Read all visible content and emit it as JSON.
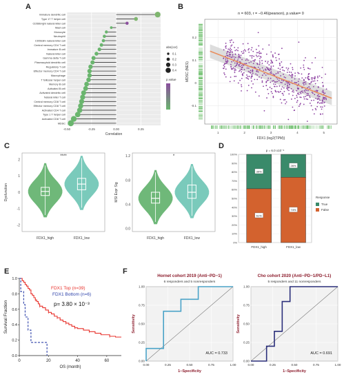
{
  "panel_letters": [
    "A",
    "B",
    "C",
    "D",
    "E",
    "F"
  ],
  "chart_data": [
    {
      "id": "A",
      "type": "lollipop",
      "categories": [
        "Immature dendritic cell",
        "Type 17 T helper cell",
        "CD56bright natural killer cell",
        "Mast cell",
        "Monocyte",
        "Neutrophil",
        "CD56dim natural killer cell",
        "Central memory CD4 T cell",
        "Immature B cell",
        "Natural killer cell",
        "Gamma delta T cell",
        "Plasmacytoid dendritic cell",
        "Regulatory T cell",
        "Effector memory CD4 T cell",
        "Macrophage",
        "T follicular helper cell",
        "Memory B cell",
        "Activated B cell",
        "Activated dendritic cell",
        "Natural killer T cell",
        "Central memory CD8 T cell",
        "Effector memory CD8 T cell",
        "Activated CD4 T cell",
        "Type 1 T helper cell",
        "Activated CD8 T cell",
        "MDSC"
      ],
      "values": [
        0.42,
        0.2,
        0.11,
        -0.05,
        -0.1,
        -0.12,
        -0.13,
        -0.15,
        -0.17,
        -0.2,
        -0.23,
        -0.24,
        -0.26,
        -0.27,
        -0.27,
        -0.28,
        -0.3,
        -0.31,
        -0.33,
        -0.34,
        -0.35,
        -0.36,
        -0.37,
        -0.39,
        -0.43,
        -0.46
      ],
      "pvalue": [
        0.02,
        0.01,
        0.1,
        0,
        0,
        0,
        0,
        0,
        0,
        0,
        0,
        0,
        0,
        0,
        0,
        0,
        0,
        0,
        0,
        0,
        0,
        0,
        0,
        0,
        0,
        0
      ],
      "xlabel": "Correlation",
      "xticks": [
        "-0.50",
        "-0.25",
        "0.00",
        "0.25"
      ],
      "xlim": [
        -0.5,
        0.45
      ],
      "legend_size_title": "abs(cor)",
      "legend_size_values": [
        "0.1",
        "0.2",
        "0.3",
        "0.4"
      ],
      "legend_color_title": "p.value",
      "color_high": "#8b4f9e",
      "color_low": "#6ab56e"
    },
    {
      "id": "B",
      "type": "scatter",
      "title": "n = 603, r = −0.46(pearson), p.value= 0",
      "xlabel": "FDX1 (log2(TPM))",
      "ylabel": "MDSC (NES)",
      "xticks": [
        "1",
        "2",
        "3",
        "4",
        "5"
      ],
      "yticks": [
        "0.2",
        "0.1",
        "0",
        "-0.1"
      ],
      "xlim": [
        0.5,
        5.5
      ],
      "ylim": [
        -0.18,
        0.28
      ],
      "point_color": "#8b3fa0",
      "line_color": "#e98e5e",
      "rug_color": "#6fbf6e",
      "n": 603,
      "r": -0.46
    },
    {
      "id": "C1",
      "type": "violin",
      "categories": [
        "FDX1_high",
        "FDX1_low"
      ],
      "ylabel": "Dysfunction",
      "yticks": [
        "2",
        "1",
        "0",
        "-1",
        "-2"
      ],
      "ylim": [
        -2.4,
        2.4
      ],
      "median": [
        0.05,
        0.5
      ],
      "q1": [
        -0.2,
        0.15
      ],
      "q3": [
        0.3,
        0.85
      ],
      "significance": "****",
      "colors": [
        "#5fb06a",
        "#6cc4b4"
      ]
    },
    {
      "id": "C2",
      "type": "violin",
      "categories": [
        "FDX1_high",
        "FDX1_low"
      ],
      "ylabel": "MSI Expr Sig",
      "yticks": [
        "1.2",
        "0.8",
        "0.4",
        "0.0"
      ],
      "ylim": [
        -0.05,
        1.25
      ],
      "median": [
        0.5,
        0.6
      ],
      "q1": [
        0.42,
        0.5
      ],
      "q3": [
        0.6,
        0.72
      ],
      "significance": "*",
      "colors": [
        "#5fb06a",
        "#6cc4b4"
      ]
    },
    {
      "id": "D",
      "type": "bar",
      "title": "p = 6.0 x10⁻⁶",
      "categories": [
        "FDX1_high",
        "FDX1_low"
      ],
      "series": [
        {
          "name": "True",
          "values": [
            39,
            26
          ],
          "labels": [
            "39%",
            "26%"
          ]
        },
        {
          "name": "False",
          "values": [
            61,
            74
          ],
          "labels": [
            "61%",
            "74%"
          ]
        }
      ],
      "yticks": [
        "100%",
        "90%",
        "80%",
        "70%",
        "60%",
        "50%",
        "40%",
        "30%",
        "20%",
        "10%",
        "0%"
      ],
      "legend_title": "Response",
      "colors": [
        "#3a8a6a",
        "#d3622e"
      ]
    },
    {
      "id": "E",
      "type": "line",
      "xlabel": "OS (month)",
      "ylabel": "Survival Fraction",
      "xticks": [
        "0",
        "20",
        "40",
        "60"
      ],
      "yticks": [
        "1.0",
        "0.8",
        "0.6",
        "0.4",
        "0.2",
        "0.0"
      ],
      "xlim": [
        0,
        70
      ],
      "ylim": [
        0,
        1
      ],
      "series": [
        {
          "name": "FDX1 Top (n=39)",
          "color": "#e8302a",
          "x": [
            0,
            2,
            3,
            4,
            5,
            6,
            7,
            8,
            9,
            10,
            11,
            12,
            13,
            14,
            16,
            18,
            20,
            22,
            24,
            26,
            28,
            30,
            32,
            34,
            36,
            38,
            40,
            44,
            48,
            52,
            56,
            62,
            66,
            70
          ],
          "y": [
            1,
            0.97,
            0.95,
            0.92,
            0.9,
            0.87,
            0.85,
            0.8,
            0.78,
            0.75,
            0.72,
            0.7,
            0.67,
            0.64,
            0.62,
            0.59,
            0.56,
            0.54,
            0.51,
            0.49,
            0.46,
            0.44,
            0.42,
            0.4,
            0.38,
            0.36,
            0.35,
            0.33,
            0.31,
            0.29,
            0.27,
            0.25,
            0.24,
            0.24
          ]
        },
        {
          "name": "FDX1 Bottom (n=6)",
          "color": "#2b3fa8",
          "x": [
            0,
            1,
            2,
            3,
            4,
            6,
            8,
            10,
            18,
            19
          ],
          "y": [
            1,
            0.83,
            0.83,
            0.66,
            0.5,
            0.33,
            0.17,
            0.17,
            0.17,
            0
          ]
        }
      ],
      "annotation": "p= 3.80 × 10⁻³"
    },
    {
      "id": "F1",
      "type": "line",
      "title": "Hornet cohort 2019 (Anti−PD−1)",
      "subtitle": "6 responders and 5 nonresponders",
      "xlabel": "1−Specificity",
      "ylabel": "Sensitivity",
      "xticks": [
        "0.00",
        "0.25",
        "0.50",
        "0.75",
        "1.00"
      ],
      "yticks": [
        "1.00",
        "0.75",
        "0.50",
        "0.25",
        "0.00"
      ],
      "series": [
        {
          "name": "ROC",
          "color": "#4aa3c8",
          "x": [
            0,
            0,
            0.2,
            0.2,
            0.4,
            0.4,
            0.6,
            0.6,
            1
          ],
          "y": [
            0,
            0.17,
            0.17,
            0.67,
            0.67,
            0.83,
            0.83,
            1,
            1
          ]
        }
      ],
      "annotation": "AUC = 0.733"
    },
    {
      "id": "F2",
      "type": "line",
      "title": "Cho cohort 2020 (Anti−PD−1/PD−L1)",
      "subtitle": "5 responders and 11 nonresponders",
      "xlabel": "1−Specificity",
      "ylabel": "Sensitivity",
      "xticks": [
        "0.00",
        "0.25",
        "0.50",
        "0.75",
        "1.00"
      ],
      "yticks": [
        "1.00",
        "0.75",
        "0.50",
        "0.25",
        "0.00"
      ],
      "series": [
        {
          "name": "ROC",
          "color": "#2a2e7a",
          "x": [
            0,
            0.18,
            0.18,
            0.27,
            0.27,
            0.36,
            0.36,
            0.45,
            0.45,
            1
          ],
          "y": [
            0,
            0,
            0.2,
            0.2,
            0.4,
            0.4,
            0.8,
            0.8,
            1,
            1
          ]
        }
      ],
      "annotation": "AUC = 0.691"
    }
  ]
}
